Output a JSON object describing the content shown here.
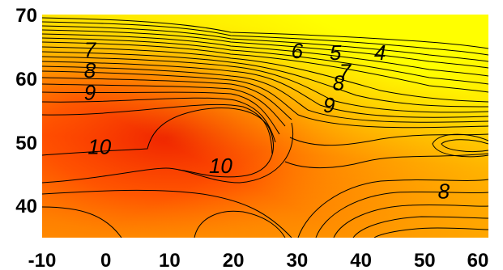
{
  "chart_data": {
    "type": "heatmap",
    "title": "",
    "xlabel": "",
    "ylabel": "",
    "xlim": [
      -10,
      60
    ],
    "ylim": [
      35,
      70
    ],
    "x_ticks": [
      "-10",
      "0",
      "10",
      "20",
      "30",
      "40",
      "50",
      "60"
    ],
    "y_ticks": [
      "40",
      "50",
      "60",
      "70"
    ],
    "grid": false,
    "legend": "none",
    "colorscale": {
      "low_color": "#ee2200",
      "mid_color": "#ff7700",
      "high_color": "#ffff00"
    },
    "contour_labels": [
      {
        "text": "4",
        "x": 43,
        "y": 63.8
      },
      {
        "text": "5",
        "x": 36,
        "y": 63.8
      },
      {
        "text": "6",
        "x": 30,
        "y": 64.0
      },
      {
        "text": "7",
        "x": -2.5,
        "y": 64.2
      },
      {
        "text": "7",
        "x": 37.5,
        "y": 60.8
      },
      {
        "text": "8",
        "x": -2.5,
        "y": 61.0
      },
      {
        "text": "8",
        "x": 36.5,
        "y": 59.0
      },
      {
        "text": "8",
        "x": 53,
        "y": 42.0
      },
      {
        "text": "9",
        "x": -2.5,
        "y": 57.5
      },
      {
        "text": "9",
        "x": 35,
        "y": 55.5
      },
      {
        "text": "10",
        "x": -1,
        "y": 49.0
      },
      {
        "text": "10",
        "x": 18,
        "y": 46.0
      }
    ]
  }
}
